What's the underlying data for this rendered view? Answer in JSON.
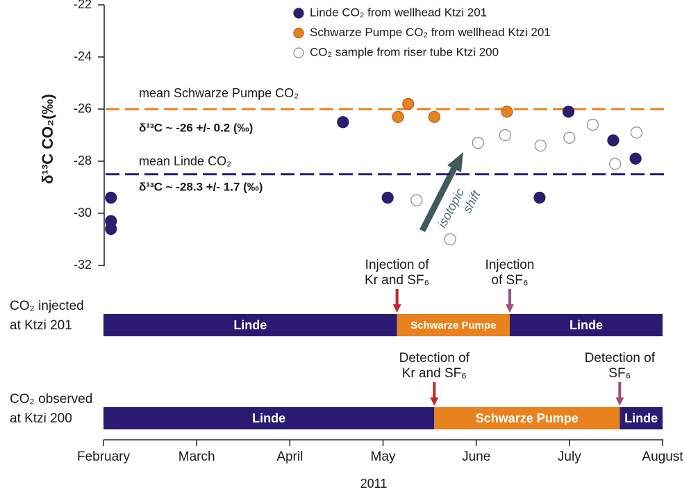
{
  "chart_data": {
    "type": "scatter",
    "x_label": "2011",
    "y_label": "δ¹³C CO₂(‰)",
    "xlim": [
      2,
      8
    ],
    "ylim": [
      -32,
      -22
    ],
    "xticks": [
      {
        "value": 2,
        "label": "February"
      },
      {
        "value": 3,
        "label": "March"
      },
      {
        "value": 4,
        "label": "April"
      },
      {
        "value": 5,
        "label": "May"
      },
      {
        "value": 6,
        "label": "June"
      },
      {
        "value": 7,
        "label": "July"
      },
      {
        "value": 8,
        "label": "August"
      }
    ],
    "yticks": [
      -32,
      -30,
      -28,
      -26,
      -24,
      -22
    ],
    "series": [
      {
        "name": "Linde CO₂ from wellhead Ktzi 201",
        "color": "#2a1e6e",
        "fill": "#2a1e6e",
        "x": [
          2.08,
          2.08,
          2.08,
          4.57,
          5.05,
          6.68,
          6.99,
          7.47,
          7.71
        ],
        "values": [
          -29.4,
          -30.3,
          -30.6,
          -26.5,
          -29.4,
          -29.4,
          -26.1,
          -27.2,
          -27.9
        ]
      },
      {
        "name": "Schwarze Pumpe CO₂ from wellhead Ktzi 201",
        "color": "#b8601a",
        "fill": "#e8821e",
        "x": [
          5.16,
          5.27,
          5.55,
          6.33
        ],
        "values": [
          -26.3,
          -25.8,
          -26.3,
          -26.1
        ]
      },
      {
        "name": "CO₂ sample from riser tube Ktzi 200",
        "color": "#8a8a8a",
        "fill": "#ffffff",
        "x": [
          5.36,
          5.72,
          6.02,
          6.31,
          6.69,
          7.0,
          7.25,
          7.49,
          7.72
        ],
        "values": [
          -29.5,
          -31.0,
          -27.3,
          -27.0,
          -27.4,
          -27.1,
          -26.6,
          -28.1,
          -26.9
        ]
      }
    ],
    "reference_lines": [
      {
        "value": -26,
        "color": "#e8821e",
        "label": "mean Schwarze Pumpe CO₂",
        "note": "δ¹³C ~ -26 +/- 0.2 (‰)"
      },
      {
        "value": -28.5,
        "color": "#2a1e6e",
        "label": "mean Linde CO₂",
        "note": "δ¹³C ~ -28.3 +/- 1.7 (‰)"
      }
    ],
    "annotation": [
      "isotopic",
      "shift"
    ],
    "timelines": [
      {
        "label": [
          "CO₂ injected",
          "at Ktzi 201"
        ],
        "segments": [
          {
            "name": "Linde",
            "start": 2,
            "end": 5.15,
            "color": "#2b1a72"
          },
          {
            "name": "Schwarze Pumpe",
            "start": 5.15,
            "end": 6.36,
            "color": "#e8821e"
          },
          {
            "name": "Linde",
            "start": 6.36,
            "end": 8,
            "color": "#2b1a72"
          }
        ]
      },
      {
        "label": [
          "CO₂ observed",
          "at Ktzi 200"
        ],
        "segments": [
          {
            "name": "Linde",
            "start": 2,
            "end": 5.55,
            "color": "#2b1a72"
          },
          {
            "name": "Schwarze Pumpe",
            "start": 5.55,
            "end": 7.54,
            "color": "#e8821e"
          },
          {
            "name": "Linde",
            "start": 7.54,
            "end": 8,
            "color": "#2b1a72"
          }
        ]
      }
    ],
    "events": [
      {
        "timeline": 0,
        "x": 5.15,
        "color": "#c0282d",
        "label": [
          "Injection of",
          "Kr and SF₆"
        ]
      },
      {
        "timeline": 0,
        "x": 6.36,
        "color": "#9b4f7a",
        "label": [
          "Injection",
          "of SF₆"
        ]
      },
      {
        "timeline": 1,
        "x": 5.55,
        "color": "#c0282d",
        "label": [
          "Detection of",
          "Kr and SF₆"
        ]
      },
      {
        "timeline": 1,
        "x": 7.54,
        "color": "#9b4f7a",
        "label": [
          "Detection of",
          "SF₆"
        ]
      }
    ]
  }
}
